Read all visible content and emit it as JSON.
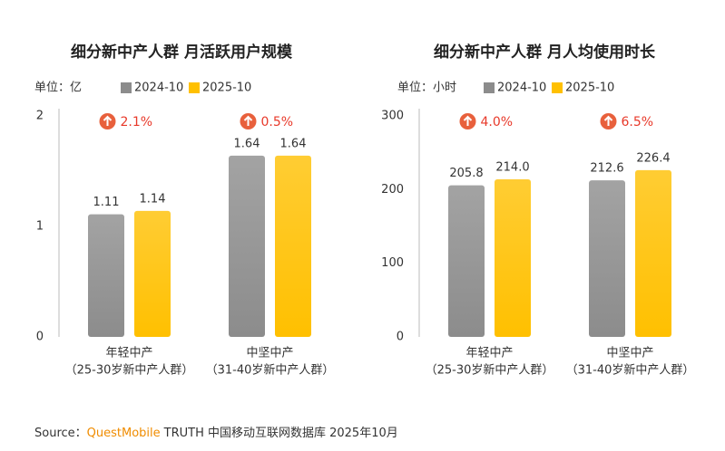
{
  "chart_data": [
    {
      "type": "bar",
      "title": "细分新中产人群 月活跃用户规模",
      "unit": "单位：亿",
      "categories": [
        "年轻中产",
        "中坚中产"
      ],
      "category_notes": [
        "（25-30岁新中产人群）",
        "（31-40岁新中产人群）"
      ],
      "series": [
        {
          "name": "2024-10",
          "color": "#8c8c8c",
          "values": [
            1.11,
            1.64
          ]
        },
        {
          "name": "2025-10",
          "color": "#ffc000",
          "values": [
            1.14,
            1.64
          ]
        }
      ],
      "annotations": [
        "2.1%",
        "0.5%"
      ],
      "ylim": [
        0,
        2
      ],
      "yticks": [
        0,
        1,
        2
      ]
    },
    {
      "type": "bar",
      "title": "细分新中产人群 月人均使用时长",
      "unit": "单位：小时",
      "categories": [
        "年轻中产",
        "中坚中产"
      ],
      "category_notes": [
        "（25-30岁新中产人群）",
        "（31-40岁新中产人群）"
      ],
      "series": [
        {
          "name": "2024-10",
          "color": "#8c8c8c",
          "values": [
            205.8,
            212.6
          ]
        },
        {
          "name": "2025-10",
          "color": "#ffc000",
          "values": [
            214.0,
            226.4
          ],
          "value_labels": [
            "214.0",
            "226.4"
          ]
        }
      ],
      "annotations": [
        "4.0%",
        "6.5%"
      ],
      "ylim": [
        0,
        300
      ],
      "yticks": [
        0,
        100,
        200,
        300
      ]
    }
  ],
  "footer": {
    "label": "Source：",
    "brand": "QuestMobile",
    "text": "TRUTH 中国移动互联网数据库 2025年10月"
  }
}
